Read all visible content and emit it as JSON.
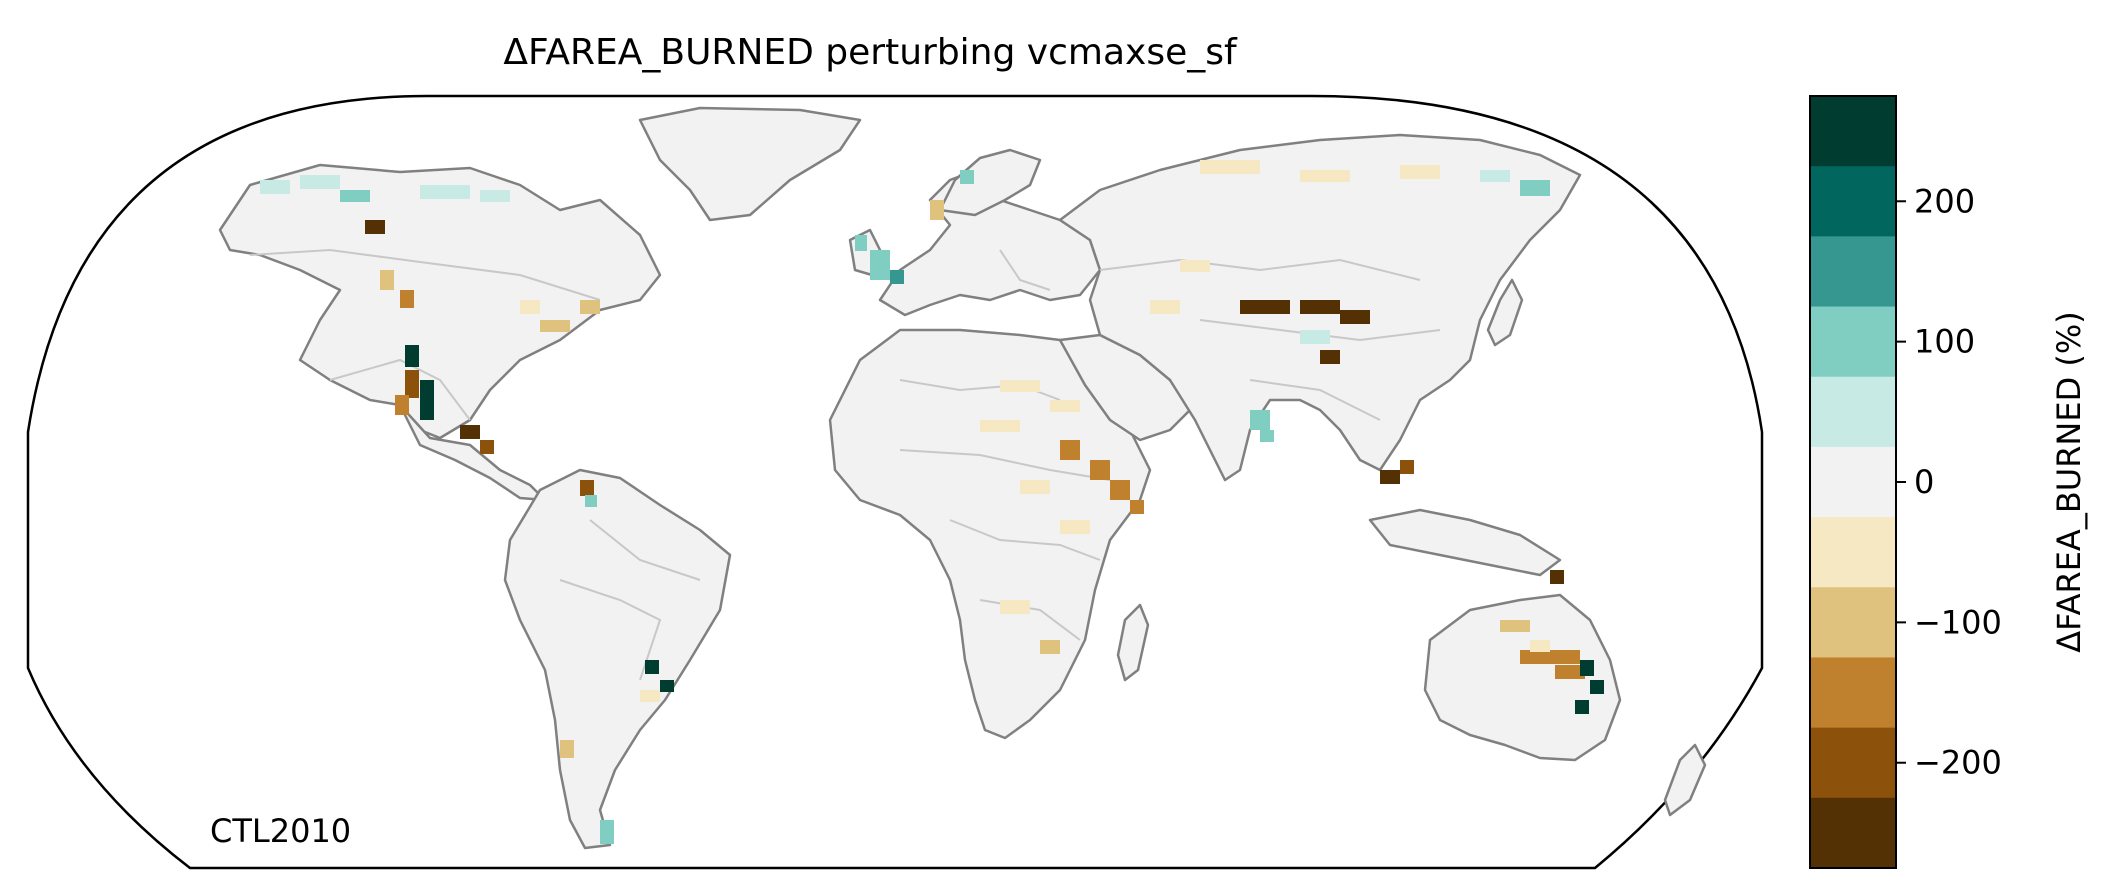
{
  "title": "ΔFAREA_BURNED perturbing vcmaxse_sf",
  "annotation": "CTL2010",
  "colorbar": {
    "label": "ΔFAREA_BURNED (%)",
    "ticks": [
      {
        "value": 200,
        "label": "200"
      },
      {
        "value": 100,
        "label": "100"
      },
      {
        "value": 0,
        "label": "0"
      },
      {
        "value": -100,
        "label": "−100"
      },
      {
        "value": -200,
        "label": "−200"
      }
    ],
    "range": [
      -275,
      275
    ],
    "levels": [
      {
        "lo": 225,
        "hi": 275,
        "color": "#003c30"
      },
      {
        "lo": 175,
        "hi": 225,
        "color": "#01665e"
      },
      {
        "lo": 125,
        "hi": 175,
        "color": "#35978f"
      },
      {
        "lo": 75,
        "hi": 125,
        "color": "#80cdc1"
      },
      {
        "lo": 25,
        "hi": 75,
        "color": "#c7eae5"
      },
      {
        "lo": -25,
        "hi": 25,
        "color": "#f2f2f2"
      },
      {
        "lo": -75,
        "hi": -25,
        "color": "#f6e8c3"
      },
      {
        "lo": -125,
        "hi": -75,
        "color": "#dfc27d"
      },
      {
        "lo": -175,
        "hi": -125,
        "color": "#bf812d"
      },
      {
        "lo": -225,
        "hi": -175,
        "color": "#8c510a"
      },
      {
        "lo": -275,
        "hi": -225,
        "color": "#543005"
      }
    ]
  },
  "colors": {
    "coastline": "#808080",
    "borders": "#c8c8c8",
    "land_fill": "#f2f2f2",
    "frame": "#000000"
  }
}
